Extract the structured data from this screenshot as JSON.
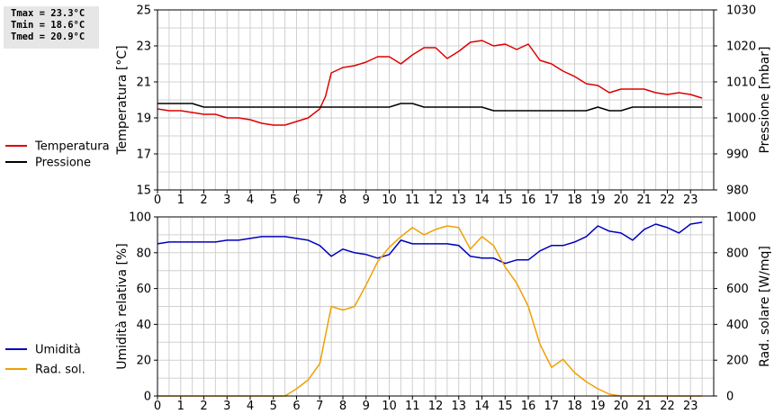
{
  "stats": {
    "tmax": "Tmax = 23.3°C",
    "tmin": "Tmin = 18.6°C",
    "tmed": "Tmed = 20.9°C"
  },
  "colors": {
    "temperature": "#dd0000",
    "pressure": "#000000",
    "humidity": "#0000bb",
    "solar": "#f0a000",
    "grid": "#d0d0d0",
    "stats_bg": "#e6e6e6"
  },
  "chart_data": [
    {
      "type": "line",
      "xlim": [
        0,
        24
      ],
      "xticks": [
        "0",
        "1",
        "2",
        "3",
        "4",
        "5",
        "6",
        "7",
        "8",
        "9",
        "10",
        "11",
        "12",
        "13",
        "14",
        "15",
        "16",
        "17",
        "18",
        "19",
        "20",
        "21",
        "22",
        "23"
      ],
      "grid": true,
      "legend_placement": "left",
      "y_left": {
        "label": "Temperatura [°C]",
        "lim": [
          15,
          25
        ],
        "ticks": [
          "15",
          "17",
          "19",
          "21",
          "23",
          "25"
        ]
      },
      "y_right": {
        "label": "Pressione [mbar]",
        "lim": [
          980,
          1030
        ],
        "ticks": [
          "980",
          "990",
          "1000",
          "1010",
          "1020",
          "1030"
        ]
      },
      "series": [
        {
          "name": "Temperatura",
          "axis": "left",
          "x": [
            0,
            0.5,
            1,
            1.5,
            2,
            2.5,
            3,
            3.5,
            4,
            4.5,
            5,
            5.5,
            6,
            6.5,
            7,
            7.25,
            7.5,
            8,
            8.5,
            9,
            9.5,
            10,
            10.5,
            11,
            11.5,
            12,
            12.5,
            13,
            13.5,
            14,
            14.5,
            15,
            15.5,
            16,
            16.5,
            17,
            17.5,
            18,
            18.5,
            19,
            19.5,
            20,
            20.5,
            21,
            21.5,
            22,
            22.5,
            23,
            23.5
          ],
          "values": [
            19.5,
            19.4,
            19.4,
            19.3,
            19.2,
            19.2,
            19.0,
            19.0,
            18.9,
            18.7,
            18.6,
            18.6,
            18.8,
            19.0,
            19.5,
            20.2,
            21.5,
            21.8,
            21.9,
            22.1,
            22.4,
            22.4,
            22.0,
            22.5,
            22.9,
            22.9,
            22.3,
            22.7,
            23.2,
            23.3,
            23.0,
            23.1,
            22.8,
            23.1,
            22.2,
            22.0,
            21.6,
            21.3,
            20.9,
            20.8,
            20.4,
            20.6,
            20.6,
            20.6,
            20.4,
            20.3,
            20.4,
            20.3,
            20.1
          ]
        },
        {
          "name": "Pressione",
          "axis": "right",
          "x": [
            0,
            1.5,
            2,
            9,
            10,
            10.5,
            11,
            11.5,
            14,
            14.5,
            18.5,
            19,
            19.5,
            20,
            20.5,
            23.5
          ],
          "values": [
            1004,
            1004,
            1003,
            1003,
            1003,
            1004,
            1004,
            1003,
            1003,
            1002,
            1002,
            1003,
            1002,
            1002,
            1003,
            1003
          ]
        }
      ]
    },
    {
      "type": "line",
      "xlim": [
        0,
        24
      ],
      "xticks": [
        "0",
        "1",
        "2",
        "3",
        "4",
        "5",
        "6",
        "7",
        "8",
        "9",
        "10",
        "11",
        "12",
        "13",
        "14",
        "15",
        "16",
        "17",
        "18",
        "19",
        "20",
        "21",
        "22",
        "23"
      ],
      "grid": true,
      "legend_placement": "left",
      "y_left": {
        "label": "Umidità relativa [%]",
        "lim": [
          0,
          100
        ],
        "ticks": [
          "0",
          "20",
          "40",
          "60",
          "80",
          "100"
        ]
      },
      "y_right": {
        "label": "Rad. solare [W/mq]",
        "lim": [
          0,
          1000
        ],
        "ticks": [
          "0",
          "200",
          "400",
          "600",
          "800",
          "1000"
        ]
      },
      "series": [
        {
          "name": "Umidità",
          "axis": "left",
          "x": [
            0,
            0.5,
            1,
            1.5,
            2,
            2.5,
            3,
            3.5,
            4,
            4.5,
            5,
            5.5,
            6,
            6.5,
            7,
            7.5,
            8,
            8.5,
            9,
            9.5,
            10,
            10.5,
            11,
            11.5,
            12,
            12.5,
            13,
            13.5,
            14,
            14.5,
            15,
            15.5,
            16,
            16.5,
            17,
            17.5,
            18,
            18.5,
            19,
            19.5,
            20,
            20.5,
            21,
            21.5,
            22,
            22.5,
            23,
            23.5
          ],
          "values": [
            85,
            86,
            86,
            86,
            86,
            86,
            87,
            87,
            88,
            89,
            89,
            89,
            88,
            87,
            84,
            78,
            82,
            80,
            79,
            77,
            79,
            87,
            85,
            85,
            85,
            85,
            84,
            78,
            77,
            77,
            74,
            76,
            76,
            81,
            84,
            84,
            86,
            89,
            95,
            92,
            91,
            87,
            93,
            96,
            94,
            91,
            96,
            97
          ]
        },
        {
          "name": "Rad. sol.",
          "axis": "right",
          "x": [
            0,
            1,
            2,
            3,
            4,
            5,
            5.5,
            6,
            6.5,
            7,
            7.5,
            8,
            8.5,
            9,
            9.5,
            10,
            10.5,
            11,
            11.5,
            12,
            12.5,
            13,
            13.5,
            14,
            14.5,
            15,
            15.5,
            16,
            16.5,
            17,
            17.5,
            18,
            18.5,
            19,
            19.5,
            20,
            21,
            22,
            23,
            23.5
          ],
          "values": [
            0,
            0,
            0,
            0,
            0,
            0,
            0,
            40,
            90,
            180,
            500,
            480,
            500,
            620,
            750,
            830,
            890,
            940,
            900,
            930,
            950,
            940,
            820,
            890,
            840,
            720,
            630,
            500,
            290,
            160,
            205,
            130,
            80,
            40,
            10,
            0,
            0,
            0,
            0,
            0
          ]
        }
      ]
    }
  ]
}
